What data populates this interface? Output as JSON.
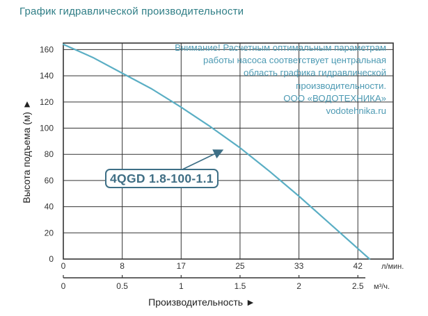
{
  "heading": "График гидравлической производительности",
  "notice": [
    "Внимание! Расчетным оптимальным параметрам",
    "работы насоса соответствует центральная",
    "область графика гидравлической",
    "производительности.",
    "ООО «ВОДОТЕХНИКА»",
    "vodotehnika.ru"
  ],
  "colors": {
    "curve": "#5aaec4",
    "grid": "#333333",
    "label_border": "#3d6f86",
    "heading": "#2f7e86",
    "notice": "#4d9ab3"
  },
  "chart_data": {
    "type": "line",
    "title": "",
    "ylabel": "Высота подъема (м) ►",
    "xlabel": "Производительность ►",
    "ylim": [
      0,
      165
    ],
    "yticks": [
      0,
      20,
      40,
      60,
      80,
      100,
      120,
      140,
      160
    ],
    "xlim": [
      0,
      2.8
    ],
    "x_axes": [
      {
        "unit_label": "л/мин.",
        "ticks": [
          {
            "value": 0,
            "label": "0"
          },
          {
            "value": 0.5,
            "label": "8"
          },
          {
            "value": 1,
            "label": "17"
          },
          {
            "value": 1.5,
            "label": "25"
          },
          {
            "value": 2,
            "label": "33"
          },
          {
            "value": 2.5,
            "label": "42"
          }
        ]
      },
      {
        "unit_label": "м³/ч.",
        "ticks": [
          {
            "value": 0,
            "label": "0"
          },
          {
            "value": 0.5,
            "label": "0.5"
          },
          {
            "value": 1,
            "label": "1"
          },
          {
            "value": 1.5,
            "label": "1.5"
          },
          {
            "value": 2,
            "label": "2"
          },
          {
            "value": 2.5,
            "label": "2.5"
          }
        ]
      }
    ],
    "grid": true,
    "series": [
      {
        "name": "4QGD 1.8-100-1.1",
        "x": [
          0,
          0.25,
          0.5,
          0.75,
          1.0,
          1.25,
          1.5,
          1.75,
          2.0,
          2.25,
          2.5,
          2.6
        ],
        "values": [
          164,
          154,
          142,
          130,
          116,
          101,
          85,
          67,
          48,
          28,
          8,
          0
        ]
      }
    ]
  }
}
